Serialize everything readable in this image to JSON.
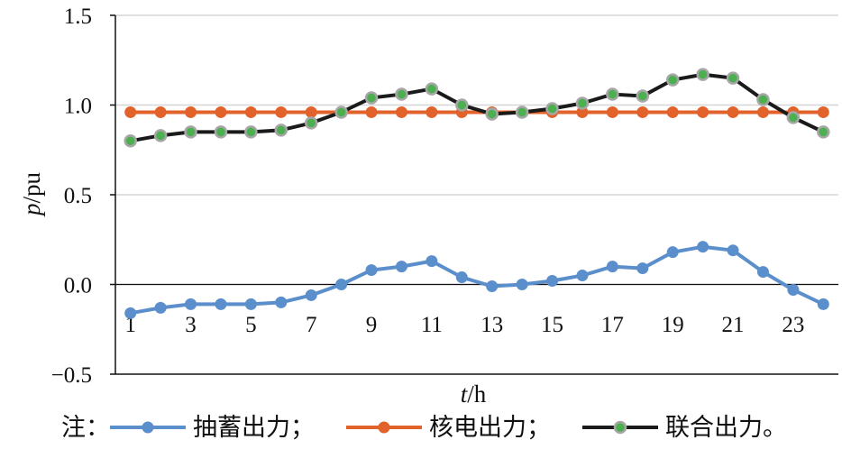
{
  "chart_data": {
    "type": "line",
    "x": [
      1,
      2,
      3,
      4,
      5,
      6,
      7,
      8,
      9,
      10,
      11,
      12,
      13,
      14,
      15,
      16,
      17,
      18,
      19,
      20,
      21,
      22,
      23,
      24
    ],
    "x_tick_labels": [
      "1",
      "3",
      "5",
      "7",
      "9",
      "11",
      "13",
      "15",
      "17",
      "19",
      "21",
      "23"
    ],
    "ylim": [
      -0.5,
      1.5
    ],
    "y_tick_labels": [
      "1.5",
      "1.0",
      "0.5",
      "0.0",
      "−0.5"
    ],
    "xlabel": {
      "var": "t",
      "unit": "/h"
    },
    "ylabel": {
      "var": "p",
      "unit": "/pu"
    },
    "grid": "horizontal",
    "legend_position": "bottom",
    "legend_prefix": "注：",
    "series": [
      {
        "name": "抽蓄出力；",
        "color": "#5b8fcc",
        "marker_fill": "#5b8fcc",
        "values": [
          -0.16,
          -0.13,
          -0.11,
          -0.11,
          -0.11,
          -0.1,
          -0.06,
          0.0,
          0.08,
          0.1,
          0.13,
          0.04,
          -0.01,
          0.0,
          0.02,
          0.05,
          0.1,
          0.09,
          0.18,
          0.21,
          0.19,
          0.07,
          -0.03,
          -0.11
        ]
      },
      {
        "name": "核电出力；",
        "color": "#e2622b",
        "marker_fill": "#e2622b",
        "values": [
          0.96,
          0.96,
          0.96,
          0.96,
          0.96,
          0.96,
          0.96,
          0.96,
          0.96,
          0.96,
          0.96,
          0.96,
          0.96,
          0.96,
          0.96,
          0.96,
          0.96,
          0.96,
          0.96,
          0.96,
          0.96,
          0.96,
          0.96,
          0.96
        ]
      },
      {
        "name": "联合出力。",
        "color": "#1a1a1a",
        "marker_fill": "#4caf50",
        "marker_stroke": "#a6a6a6",
        "values": [
          0.8,
          0.83,
          0.85,
          0.85,
          0.85,
          0.86,
          0.9,
          0.96,
          1.04,
          1.06,
          1.09,
          1.0,
          0.95,
          0.96,
          0.98,
          1.01,
          1.06,
          1.05,
          1.14,
          1.17,
          1.15,
          1.03,
          0.93,
          0.85
        ]
      }
    ]
  }
}
